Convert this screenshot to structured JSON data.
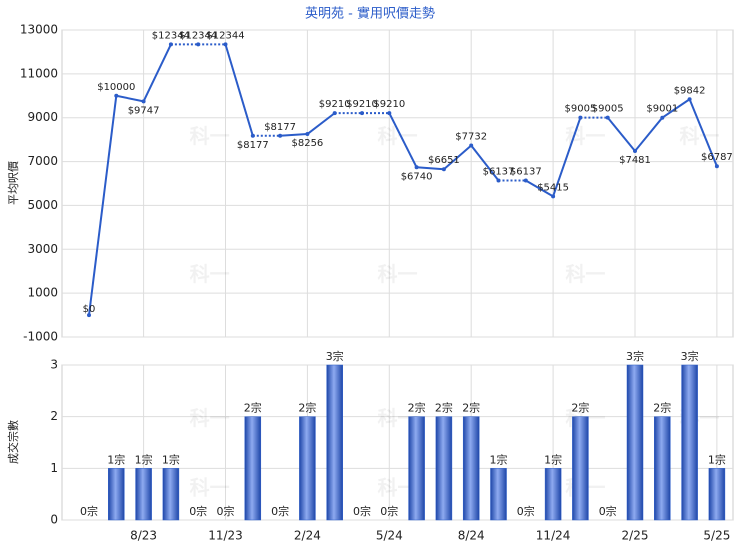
{
  "title": "英明苑 - 實用呎價走勢",
  "watermark": "科一",
  "chart_data": [
    {
      "type": "line",
      "ylabel": "平均呎價",
      "color": "#2b5cc9",
      "values": [
        0,
        10000,
        9747,
        12344,
        12344,
        12344,
        8177,
        8177,
        8256,
        9210,
        9210,
        9210,
        6740,
        6651,
        7732,
        6137,
        6137,
        5415,
        9005,
        9005,
        7481,
        9001,
        9842,
        6787
      ],
      "value_labels": [
        "$0",
        "$10000",
        "$9747",
        "$12344",
        "$12344",
        "$12344",
        "$8177",
        "$8177",
        "$8256",
        "$9210",
        "$9210",
        "$9210",
        "$6740",
        "$6651",
        "$7732",
        "$6137",
        "$6137",
        "$5415",
        "$9005",
        "$9005",
        "$7481",
        "$9001",
        "$9842",
        "$6787"
      ],
      "ylim": [
        -1000,
        13000
      ],
      "yticks": [
        -1000,
        1000,
        3000,
        5000,
        7000,
        9000,
        11000,
        13000
      ],
      "grid": true
    },
    {
      "type": "bar",
      "ylabel": "成交宗數",
      "color": "#2b5cc9",
      "categories": [
        null,
        null,
        "8/23",
        null,
        null,
        "11/23",
        null,
        null,
        "2/24",
        null,
        null,
        "5/24",
        null,
        null,
        "8/24",
        null,
        null,
        "11/24",
        null,
        null,
        "2/25",
        null,
        null,
        "5/25"
      ],
      "values": [
        0,
        1,
        1,
        1,
        0,
        0,
        2,
        0,
        2,
        3,
        0,
        0,
        2,
        2,
        2,
        1,
        0,
        1,
        2,
        0,
        3,
        2,
        3,
        1
      ],
      "value_labels": [
        "0宗",
        "1宗",
        "1宗",
        "1宗",
        "0宗",
        "0宗",
        "2宗",
        "0宗",
        "2宗",
        "3宗",
        "0宗",
        "0宗",
        "2宗",
        "2宗",
        "2宗",
        "1宗",
        "0宗",
        "1宗",
        "2宗",
        "0宗",
        "3宗",
        "2宗",
        "3宗",
        "1宗"
      ],
      "ylim": [
        0,
        3
      ],
      "yticks": [
        0,
        1,
        2,
        3
      ],
      "grid": true
    }
  ]
}
